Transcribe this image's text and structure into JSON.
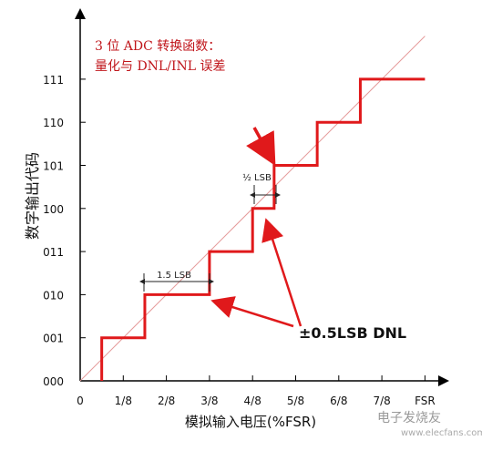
{
  "title_line1": "3 位 ADC 转换函数：",
  "title_line2": "量化与 DNL/INL 误差",
  "watermark": "电子发烧友",
  "watermark_url": "www.elecfans.com",
  "chart_data": {
    "type": "line",
    "xlabel": "模拟输入电压(%FSR)",
    "ylabel": "数字输出代码",
    "x_ticks": [
      "0",
      "1/8",
      "2/8",
      "3/8",
      "4/8",
      "5/8",
      "6/8",
      "7/8",
      "FSR"
    ],
    "y_ticks": [
      "000",
      "001",
      "010",
      "011",
      "100",
      "101",
      "110",
      "111"
    ],
    "xlim": [
      0,
      8
    ],
    "ylim": [
      0,
      7
    ],
    "series": [
      {
        "color": "#e0191b",
        "points": [
          [
            0.5,
            0
          ],
          [
            0.5,
            1
          ],
          [
            1.5,
            1
          ],
          [
            1.5,
            2
          ],
          [
            3,
            2
          ],
          [
            3,
            3
          ],
          [
            4,
            3
          ],
          [
            4,
            4
          ],
          [
            4.5,
            4
          ],
          [
            4.5,
            5
          ],
          [
            5.5,
            5
          ],
          [
            5.5,
            6
          ],
          [
            6.5,
            6
          ],
          [
            6.5,
            7
          ],
          [
            8,
            7
          ]
        ]
      },
      {
        "color": "#e59a9a",
        "points": [
          [
            0,
            0
          ],
          [
            8,
            8
          ]
        ]
      }
    ],
    "annotations": [
      {
        "text": "1.5 LSB"
      },
      {
        "text": "½ LSB"
      },
      {
        "text": "±0.5LSB DNL"
      }
    ]
  }
}
